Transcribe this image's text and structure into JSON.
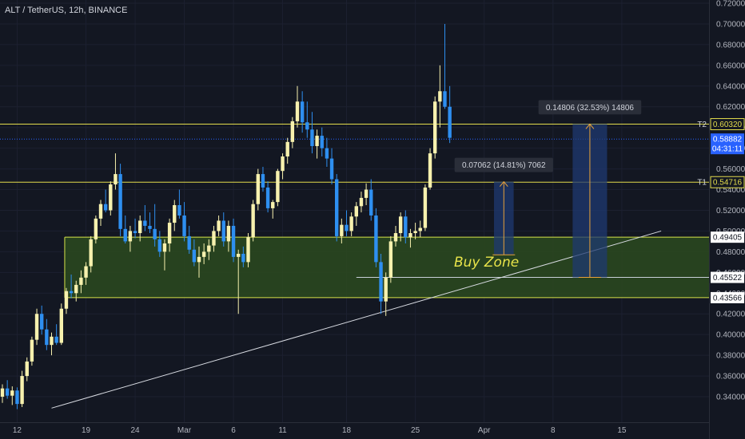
{
  "header": {
    "symbol_title": "ALT / TetherUS, 12h, BINANCE"
  },
  "colors": {
    "background": "#131722",
    "bull": "#f7f1ae",
    "bear": "#2e8ff0",
    "level_line": "#e3dc4c",
    "zone_fill": "#2b4a1f",
    "zone_border": "#d8e44a",
    "price_tag": "#2962ff",
    "trendline": "#d8dbe2",
    "projection_box": "#1f3a72",
    "projection_line": "#e8a23a"
  },
  "chart_data": {
    "type": "candlestick",
    "title": "ALT / TetherUS, 12h, BINANCE",
    "ylim": [
      0.33,
      0.72
    ],
    "y_ticks": [
      "0.34000",
      "0.36000",
      "0.38000",
      "0.40000",
      "0.42000",
      "0.44000",
      "0.46000",
      "0.48000",
      "0.50000",
      "0.52000",
      "0.54000",
      "0.56000",
      "0.58000",
      "0.60000",
      "0.62000",
      "0.64000",
      "0.66000",
      "0.68000",
      "0.70000",
      "0.72000"
    ],
    "x_ticks": [
      {
        "label": "12",
        "bar": 3
      },
      {
        "label": "19",
        "bar": 17
      },
      {
        "label": "24",
        "bar": 27
      },
      {
        "label": "Mar",
        "bar": 37
      },
      {
        "label": "6",
        "bar": 47
      },
      {
        "label": "11",
        "bar": 57
      },
      {
        "label": "18",
        "bar": 70
      },
      {
        "label": "25",
        "bar": 84
      },
      {
        "label": "Apr",
        "bar": 98
      },
      {
        "label": "8",
        "bar": 112
      },
      {
        "label": "15",
        "bar": 126
      }
    ],
    "candles": [
      [
        0.34,
        0.352,
        0.334,
        0.348
      ],
      [
        0.348,
        0.356,
        0.338,
        0.341
      ],
      [
        0.341,
        0.35,
        0.332,
        0.346
      ],
      [
        0.346,
        0.349,
        0.328,
        0.333
      ],
      [
        0.333,
        0.365,
        0.33,
        0.36
      ],
      [
        0.36,
        0.378,
        0.355,
        0.374
      ],
      [
        0.374,
        0.398,
        0.37,
        0.395
      ],
      [
        0.395,
        0.425,
        0.39,
        0.42
      ],
      [
        0.42,
        0.428,
        0.4,
        0.405
      ],
      [
        0.405,
        0.415,
        0.385,
        0.39
      ],
      [
        0.39,
        0.402,
        0.38,
        0.398
      ],
      [
        0.398,
        0.41,
        0.39,
        0.392
      ],
      [
        0.392,
        0.43,
        0.39,
        0.425
      ],
      [
        0.425,
        0.445,
        0.42,
        0.442
      ],
      [
        0.442,
        0.458,
        0.435,
        0.44
      ],
      [
        0.44,
        0.452,
        0.432,
        0.448
      ],
      [
        0.448,
        0.462,
        0.44,
        0.455
      ],
      [
        0.455,
        0.47,
        0.448,
        0.466
      ],
      [
        0.466,
        0.495,
        0.46,
        0.492
      ],
      [
        0.492,
        0.515,
        0.488,
        0.512
      ],
      [
        0.512,
        0.53,
        0.505,
        0.526
      ],
      [
        0.526,
        0.54,
        0.518,
        0.52
      ],
      [
        0.52,
        0.548,
        0.515,
        0.545
      ],
      [
        0.545,
        0.575,
        0.54,
        0.555
      ],
      [
        0.555,
        0.565,
        0.495,
        0.502
      ],
      [
        0.502,
        0.515,
        0.488,
        0.49
      ],
      [
        0.49,
        0.505,
        0.48,
        0.5
      ],
      [
        0.5,
        0.512,
        0.493,
        0.498
      ],
      [
        0.498,
        0.515,
        0.49,
        0.51
      ],
      [
        0.51,
        0.525,
        0.5,
        0.505
      ],
      [
        0.505,
        0.518,
        0.498,
        0.502
      ],
      [
        0.502,
        0.526,
        0.485,
        0.492
      ],
      [
        0.492,
        0.5,
        0.475,
        0.48
      ],
      [
        0.48,
        0.492,
        0.462,
        0.488
      ],
      [
        0.488,
        0.512,
        0.48,
        0.508
      ],
      [
        0.508,
        0.53,
        0.5,
        0.525
      ],
      [
        0.525,
        0.54,
        0.512,
        0.515
      ],
      [
        0.515,
        0.528,
        0.49,
        0.495
      ],
      [
        0.495,
        0.505,
        0.478,
        0.482
      ],
      [
        0.482,
        0.492,
        0.466,
        0.47
      ],
      [
        0.47,
        0.485,
        0.455,
        0.475
      ],
      [
        0.475,
        0.488,
        0.468,
        0.48
      ],
      [
        0.48,
        0.492,
        0.472,
        0.486
      ],
      [
        0.486,
        0.505,
        0.48,
        0.5
      ],
      [
        0.5,
        0.515,
        0.495,
        0.51
      ],
      [
        0.51,
        0.518,
        0.485,
        0.49
      ],
      [
        0.49,
        0.51,
        0.48,
        0.505
      ],
      [
        0.505,
        0.512,
        0.47,
        0.475
      ],
      [
        0.475,
        0.482,
        0.42,
        0.478
      ],
      [
        0.478,
        0.485,
        0.465,
        0.47
      ],
      [
        0.47,
        0.498,
        0.465,
        0.494
      ],
      [
        0.494,
        0.53,
        0.49,
        0.526
      ],
      [
        0.526,
        0.56,
        0.52,
        0.555
      ],
      [
        0.555,
        0.562,
        0.538,
        0.542
      ],
      [
        0.542,
        0.548,
        0.518,
        0.522
      ],
      [
        0.522,
        0.53,
        0.512,
        0.528
      ],
      [
        0.528,
        0.56,
        0.524,
        0.558
      ],
      [
        0.558,
        0.575,
        0.55,
        0.572
      ],
      [
        0.572,
        0.59,
        0.565,
        0.586
      ],
      [
        0.586,
        0.61,
        0.58,
        0.606
      ],
      [
        0.606,
        0.64,
        0.6,
        0.625
      ],
      [
        0.625,
        0.635,
        0.595,
        0.605
      ],
      [
        0.605,
        0.625,
        0.59,
        0.598
      ],
      [
        0.598,
        0.615,
        0.575,
        0.582
      ],
      [
        0.582,
        0.598,
        0.57,
        0.592
      ],
      [
        0.592,
        0.6,
        0.572,
        0.58
      ],
      [
        0.58,
        0.59,
        0.562,
        0.57
      ],
      [
        0.57,
        0.58,
        0.545,
        0.55
      ],
      [
        0.55,
        0.555,
        0.49,
        0.495
      ],
      [
        0.495,
        0.512,
        0.488,
        0.506
      ],
      [
        0.506,
        0.52,
        0.495,
        0.5
      ],
      [
        0.5,
        0.518,
        0.495,
        0.514
      ],
      [
        0.514,
        0.528,
        0.505,
        0.524
      ],
      [
        0.524,
        0.538,
        0.518,
        0.532
      ],
      [
        0.532,
        0.546,
        0.525,
        0.54
      ],
      [
        0.54,
        0.55,
        0.51,
        0.515
      ],
      [
        0.515,
        0.522,
        0.465,
        0.47
      ],
      [
        0.47,
        0.478,
        0.42,
        0.432
      ],
      [
        0.432,
        0.46,
        0.418,
        0.455
      ],
      [
        0.455,
        0.495,
        0.45,
        0.49
      ],
      [
        0.49,
        0.505,
        0.485,
        0.498
      ],
      [
        0.498,
        0.518,
        0.49,
        0.514
      ],
      [
        0.514,
        0.52,
        0.488,
        0.494
      ],
      [
        0.494,
        0.502,
        0.484,
        0.498
      ],
      [
        0.498,
        0.508,
        0.492,
        0.5
      ],
      [
        0.5,
        0.51,
        0.494,
        0.503
      ],
      [
        0.503,
        0.545,
        0.5,
        0.542
      ],
      [
        0.542,
        0.58,
        0.54,
        0.575
      ],
      [
        0.575,
        0.63,
        0.57,
        0.625
      ],
      [
        0.625,
        0.66,
        0.6,
        0.635
      ],
      [
        0.635,
        0.7,
        0.618,
        0.62
      ],
      [
        0.62,
        0.64,
        0.585,
        0.59
      ]
    ],
    "levels": [
      {
        "label": "T2",
        "value": 0.6032
      },
      {
        "label": "T1",
        "value": 0.54716
      }
    ],
    "price_tags": [
      {
        "value": "0.60320",
        "price": 0.6032,
        "style": "outline-yellow"
      },
      {
        "value": "0.58882",
        "sub": "04:31:11",
        "price": 0.58882,
        "style": "current"
      },
      {
        "value": "0.54716",
        "price": 0.54716,
        "style": "outline-yellow"
      },
      {
        "value": "0.49405",
        "price": 0.49405,
        "style": "plain"
      },
      {
        "value": "0.45522",
        "price": 0.45522,
        "style": "plain"
      },
      {
        "value": "0.43566",
        "price": 0.43566,
        "style": "plain"
      }
    ],
    "buy_zone": {
      "label": "Buy Zone",
      "top": 0.49405,
      "bottom": 0.43566,
      "start_bar": 13
    },
    "inner_line": {
      "price": 0.45522,
      "start_bar": 72
    },
    "trendline": {
      "from": {
        "bar": 10,
        "price": 0.329
      },
      "to": {
        "bar": 134,
        "price": 0.5
      }
    },
    "projections": [
      {
        "label": "0.07062 (14.81%) 7062",
        "from_price": 0.477,
        "to_price": 0.5476,
        "bar_left": 100,
        "bar_right": 104
      },
      {
        "label": "0.14806 (32.53%) 14806",
        "from_price": 0.45522,
        "to_price": 0.60328,
        "bar_left": 116,
        "bar_right": 123
      }
    ]
  }
}
